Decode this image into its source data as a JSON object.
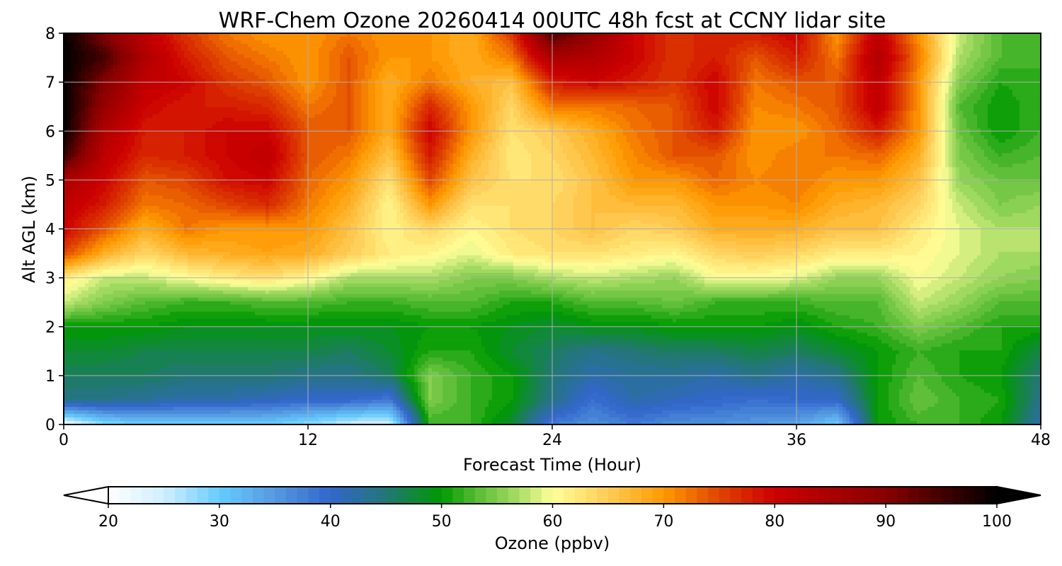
{
  "chart_data": {
    "type": "heatmap",
    "title": "WRF-Chem Ozone  20260414 00UTC 48h fcst at CCNY lidar site",
    "xlabel": "Forecast Time (Hour)",
    "ylabel": "Alt AGL (km)",
    "xlim": [
      0,
      48
    ],
    "ylim": [
      0,
      8
    ],
    "xticks": [
      "0",
      "12",
      "24",
      "36",
      "48"
    ],
    "yticks": [
      "0",
      "1",
      "2",
      "3",
      "4",
      "5",
      "6",
      "7",
      "8"
    ],
    "grid": true,
    "x_hours": [
      0,
      2,
      4,
      6,
      8,
      10,
      12,
      14,
      16,
      18,
      20,
      22,
      24,
      26,
      28,
      30,
      32,
      34,
      36,
      38,
      40,
      42,
      44,
      46,
      48
    ],
    "z_km": [
      0,
      0.5,
      1,
      1.5,
      2,
      2.5,
      3,
      3.5,
      4,
      4.5,
      5,
      5.5,
      6,
      6.5,
      7,
      7.5,
      8
    ],
    "ozone_ppbv": [
      [
        22,
        28,
        30,
        30,
        30,
        30,
        28,
        25,
        24,
        52,
        52,
        48,
        38,
        36,
        38,
        36,
        36,
        35,
        34,
        30,
        50,
        52,
        52,
        50,
        42
      ],
      [
        44,
        44,
        43,
        42,
        42,
        41,
        40,
        40,
        38,
        55,
        52,
        50,
        44,
        39,
        42,
        41,
        40,
        39,
        40,
        40,
        50,
        54,
        52,
        51,
        44
      ],
      [
        46,
        46,
        46,
        45,
        45,
        45,
        44,
        44,
        46,
        55,
        52,
        50,
        45,
        42,
        43,
        43,
        42,
        44,
        42,
        44,
        50,
        53,
        51,
        50,
        45
      ],
      [
        48,
        48,
        47,
        47,
        47,
        47,
        47,
        46,
        48,
        51,
        51,
        48,
        46,
        44,
        45,
        46,
        46,
        47,
        46,
        48,
        50,
        52,
        51,
        51,
        47
      ],
      [
        50,
        50,
        50,
        49,
        49,
        49,
        49,
        49,
        49,
        50,
        50,
        49,
        48,
        49,
        49,
        50,
        50,
        50,
        49,
        51,
        52,
        55,
        53,
        51,
        51
      ],
      [
        58,
        55,
        53,
        52,
        52,
        53,
        53,
        52,
        52,
        53,
        53,
        51,
        51,
        53,
        53,
        54,
        52,
        52,
        52,
        53,
        53,
        58,
        56,
        53,
        53
      ],
      [
        62,
        58,
        58,
        60,
        62,
        63,
        61,
        57,
        57,
        57,
        55,
        55,
        57,
        58,
        57,
        56,
        60,
        60,
        59,
        56,
        56,
        60,
        58,
        56,
        55
      ],
      [
        75,
        68,
        64,
        67,
        68,
        69,
        68,
        65,
        62,
        61,
        59,
        62,
        63,
        63,
        62,
        61,
        64,
        65,
        64,
        62,
        62,
        61,
        59,
        57,
        57
      ],
      [
        80,
        74,
        68,
        72,
        70,
        70,
        70,
        66,
        61,
        64,
        61,
        63,
        64,
        66,
        64,
        65,
        68,
        68,
        68,
        66,
        66,
        62,
        59,
        57,
        57
      ],
      [
        82,
        78,
        72,
        73,
        75,
        77,
        72,
        68,
        61,
        70,
        63,
        63,
        64,
        66,
        67,
        67,
        70,
        70,
        71,
        68,
        67,
        64,
        58,
        55,
        56
      ],
      [
        85,
        80,
        74,
        75,
        79,
        80,
        73,
        70,
        63,
        75,
        66,
        63,
        63,
        66,
        70,
        70,
        73,
        71,
        72,
        70,
        70,
        66,
        56,
        54,
        54
      ],
      [
        96,
        82,
        77,
        78,
        80,
        82,
        74,
        72,
        66,
        78,
        68,
        62,
        64,
        67,
        71,
        74,
        74,
        70,
        72,
        72,
        73,
        68,
        55,
        52,
        53
      ],
      [
        100,
        84,
        78,
        78,
        80,
        80,
        74,
        74,
        68,
        80,
        70,
        63,
        65,
        68,
        72,
        74,
        78,
        70,
        70,
        73,
        78,
        70,
        54,
        50,
        52
      ],
      [
        100,
        88,
        80,
        78,
        78,
        77,
        72,
        74,
        68,
        77,
        70,
        64,
        72,
        72,
        73,
        74,
        80,
        71,
        72,
        74,
        82,
        70,
        53,
        50,
        52
      ],
      [
        100,
        90,
        82,
        80,
        76,
        74,
        70,
        74,
        68,
        72,
        68,
        66,
        78,
        80,
        78,
        76,
        80,
        72,
        74,
        74,
        82,
        70,
        55,
        51,
        52
      ],
      [
        100,
        95,
        84,
        78,
        74,
        72,
        70,
        74,
        70,
        70,
        68,
        72,
        85,
        84,
        80,
        76,
        78,
        74,
        78,
        72,
        84,
        72,
        57,
        53,
        52
      ],
      [
        100,
        90,
        82,
        76,
        72,
        70,
        70,
        72,
        70,
        70,
        68,
        76,
        95,
        88,
        80,
        76,
        78,
        78,
        80,
        70,
        82,
        70,
        58,
        53,
        53
      ]
    ],
    "colorbar": {
      "label": "Ozone  (ppbv)",
      "min": 20,
      "max": 100,
      "step": 1,
      "ticks": [
        "20",
        "30",
        "40",
        "50",
        "60",
        "70",
        "80",
        "90",
        "100"
      ],
      "extend": "both"
    },
    "colormap": [
      [
        20,
        "#ffffff"
      ],
      [
        25,
        "#d0eeff"
      ],
      [
        30,
        "#66ccff"
      ],
      [
        35,
        "#5599e0"
      ],
      [
        40,
        "#3366cc"
      ],
      [
        45,
        "#227777"
      ],
      [
        50,
        "#009900"
      ],
      [
        53,
        "#55bb33"
      ],
      [
        57,
        "#aadd66"
      ],
      [
        60,
        "#ffff99"
      ],
      [
        65,
        "#ffcc55"
      ],
      [
        70,
        "#ff9900"
      ],
      [
        75,
        "#e04400"
      ],
      [
        80,
        "#cc0000"
      ],
      [
        85,
        "#aa0000"
      ],
      [
        90,
        "#880000"
      ],
      [
        95,
        "#440000"
      ],
      [
        100,
        "#000000"
      ]
    ]
  }
}
